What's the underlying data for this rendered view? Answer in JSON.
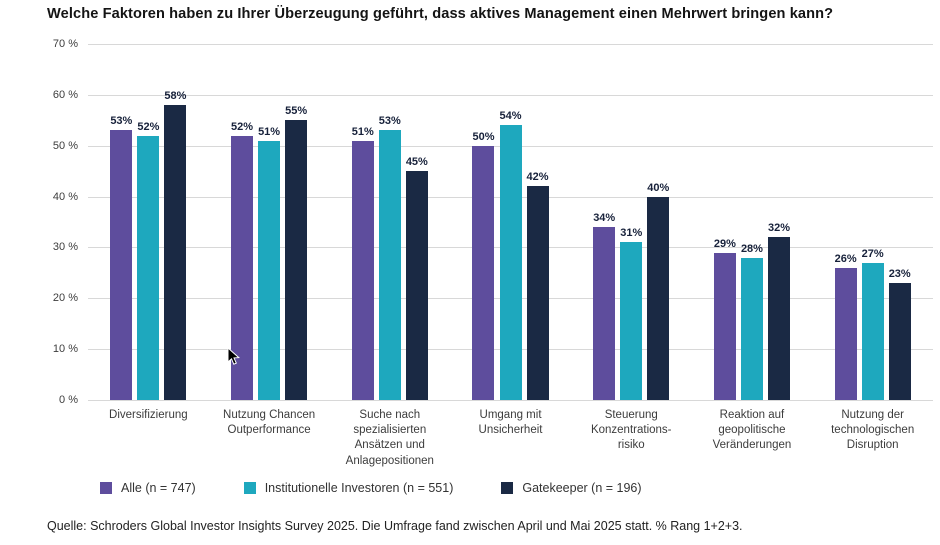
{
  "chart_data": {
    "type": "bar",
    "title": "Welche Faktoren haben zu Ihrer Überzeugung geführt, dass aktives Management einen Mehrwert bringen kann?",
    "categories": [
      [
        "Diversifizierung"
      ],
      [
        "Nutzung Chancen",
        "Outperformance"
      ],
      [
        "Suche nach",
        "spezialisierten",
        "Ansätzen und",
        "Anlagepositionen"
      ],
      [
        "Umgang mit",
        "Unsicherheit"
      ],
      [
        "Steuerung",
        "Konzentrations-",
        "risiko"
      ],
      [
        "Reaktion auf",
        "geopolitische",
        "Veränderungen"
      ],
      [
        "Nutzung der",
        "technologischen",
        "Disruption"
      ]
    ],
    "series": [
      {
        "name": "Alle (n = 747)",
        "color": "#5e4d9d",
        "values": [
          53,
          52,
          51,
          50,
          34,
          29,
          26
        ]
      },
      {
        "name": "Institutionelle Investoren (n = 551)",
        "color": "#1ea8be",
        "values": [
          52,
          51,
          53,
          54,
          31,
          28,
          27
        ]
      },
      {
        "name": "Gatekeeper (n = 196)",
        "color": "#1a2944",
        "values": [
          58,
          55,
          45,
          42,
          40,
          32,
          23
        ]
      }
    ],
    "ylim": [
      0,
      70
    ],
    "ytick_step": 10,
    "ytick_suffix": " %",
    "bar_label_suffix": "%",
    "grid": true,
    "legend_position": "bottom",
    "xlabel": "",
    "ylabel": ""
  },
  "source": "Quelle: Schroders Global Investor Insights Survey 2025. Die Umfrage fand zwischen April und Mai 2025 statt. % Rang 1+2+3."
}
